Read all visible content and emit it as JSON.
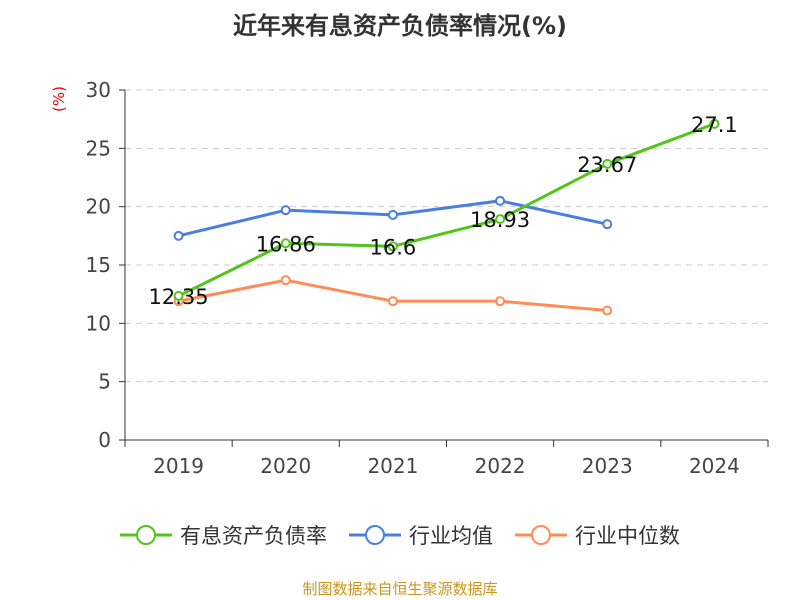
{
  "chart_data": {
    "type": "line",
    "title": "近年来有息资产负债率情况(%)",
    "ylabel": "(%)",
    "categories": [
      "2019",
      "2020",
      "2021",
      "2022",
      "2023",
      "2024"
    ],
    "ylim": [
      0,
      30
    ],
    "yticks": [
      0,
      5,
      10,
      15,
      20,
      25,
      30
    ],
    "grid": true,
    "legend_position": "bottom",
    "series": [
      {
        "name": "有息资产负债率",
        "color": "#52c41a",
        "values": [
          12.35,
          16.86,
          16.6,
          18.93,
          23.67,
          27.1
        ],
        "labels": [
          "12.35",
          "16.86",
          "16.6",
          "18.93",
          "23.67",
          "27.1"
        ]
      },
      {
        "name": "行业均值",
        "color": "#4a7fe0",
        "values": [
          17.5,
          19.7,
          19.3,
          20.5,
          18.5,
          null
        ]
      },
      {
        "name": "行业中位数",
        "color": "#ff8c55",
        "values": [
          11.9,
          13.7,
          11.9,
          11.9,
          11.1,
          null
        ]
      }
    ]
  },
  "source": "制图数据来自恒生聚源数据库"
}
